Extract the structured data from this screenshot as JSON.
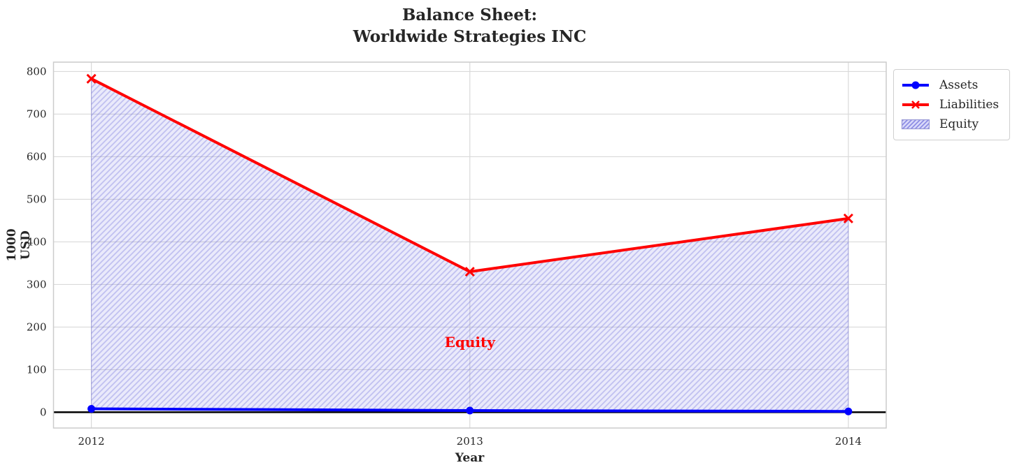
{
  "chart_data": {
    "type": "line",
    "title": "Balance Sheet:\nWorldwide Strategies INC",
    "title_lines": [
      "Balance Sheet:",
      "Worldwide Strategies INC"
    ],
    "xlabel": "Year",
    "ylabel": "1000 USD",
    "x": [
      2012,
      2013,
      2014
    ],
    "xtick_labels": [
      "2012",
      "2013",
      "2014"
    ],
    "yticks": [
      0,
      100,
      200,
      300,
      400,
      500,
      600,
      700,
      800
    ],
    "xlim": [
      2011.9,
      2014.1
    ],
    "ylim": [
      -37,
      822
    ],
    "series": [
      {
        "name": "Assets",
        "values": [
          8,
          4,
          2
        ],
        "color": "#0000ff",
        "marker": "circle",
        "line_width": 4
      },
      {
        "name": "Liabilities",
        "values": [
          783,
          330,
          455
        ],
        "color": "#ff0000",
        "marker": "x",
        "line_width": 4
      }
    ],
    "area": {
      "name": "Equity",
      "between": [
        "Assets",
        "Liabilities"
      ],
      "fill": "rgba(105,105,230,0.14)",
      "hatch_color": "rgba(95,95,215,0.30)",
      "edge_color": "rgba(100,100,220,0.40)",
      "hatch": "/"
    },
    "annotation": {
      "text": "Equity",
      "x": 2013,
      "y": 165,
      "color": "#ff0000"
    },
    "zero_line": {
      "y": 0,
      "color": "#000000",
      "width": 2.5
    },
    "grid": true,
    "legend_position": "outside-top-right",
    "colors": {
      "grid": "#d9d9d9",
      "spine": "#cccccc",
      "text": "#262626",
      "background": "#ffffff"
    }
  }
}
